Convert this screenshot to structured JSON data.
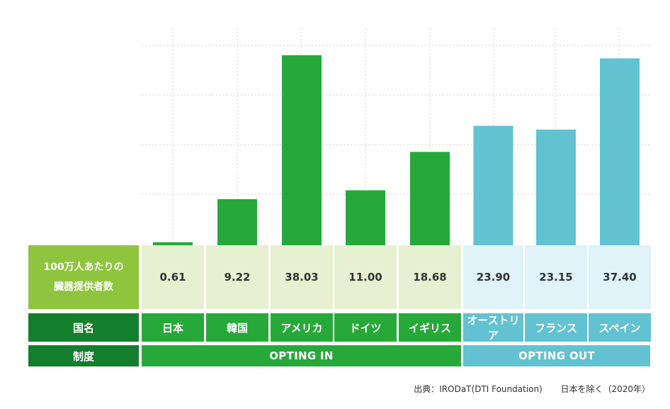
{
  "colors": {
    "opt_in": "#27a93a",
    "opt_out": "#62c2d1",
    "opt_in_row_bg": "#e8f0d2",
    "opt_out_row_bg": "#dff3f8",
    "header_bg": "#137e2c",
    "metric_label_bg": "#8fc43f",
    "grid": "#d0d0d0"
  },
  "table": {
    "metric_label_line1": "100万人あたりの",
    "metric_label_line2": "臓器提供者数",
    "country_header": "国名",
    "system_header": "制度",
    "opting_in": "OPTING IN",
    "opting_out": "OPTING OUT"
  },
  "source": {
    "text": "出典：IRODaT(DTI Foundation)",
    "note": "日本を除く（2020年）"
  },
  "chart_data": {
    "type": "bar",
    "title": "100万人あたりの臓器提供者数",
    "xlabel": "国名",
    "ylabel": "100万人あたりの臓器提供者数",
    "ylim": [
      0,
      40
    ],
    "grid": true,
    "categories": [
      "日本",
      "韓国",
      "アメリカ",
      "ドイツ",
      "イギリス",
      "オーストリア",
      "フランス",
      "スペイン"
    ],
    "values": [
      0.61,
      9.22,
      38.03,
      11.0,
      18.68,
      23.9,
      23.15,
      37.4
    ],
    "value_labels": [
      "0.61",
      "9.22",
      "38.03",
      "11.00",
      "18.68",
      "23.90",
      "23.15",
      "37.40"
    ],
    "system": [
      "OPTING IN",
      "OPTING IN",
      "OPTING IN",
      "OPTING IN",
      "OPTING IN",
      "OPTING OUT",
      "OPTING OUT",
      "OPTING OUT"
    ]
  }
}
